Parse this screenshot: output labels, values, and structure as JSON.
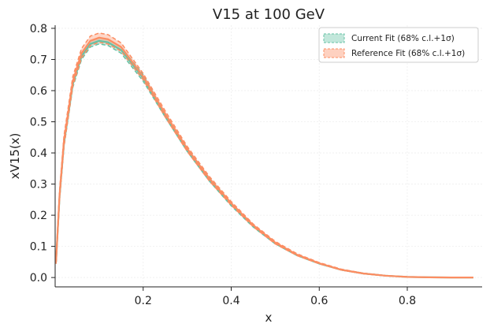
{
  "chart_data": {
    "type": "line",
    "title": "V15 at 100 GeV",
    "xlabel": "x",
    "ylabel": "xV15(x)",
    "xlim": [
      0.0,
      0.97
    ],
    "ylim": [
      -0.03,
      0.81
    ],
    "xticks": [
      0.2,
      0.4,
      0.6,
      0.8
    ],
    "xtick_labels": [
      "0.2",
      "0.4",
      "0.6",
      "0.8"
    ],
    "yticks": [
      0.0,
      0.1,
      0.2,
      0.3,
      0.4,
      0.5,
      0.6,
      0.7,
      0.8
    ],
    "ytick_labels": [
      "0.0",
      "0.1",
      "0.2",
      "0.3",
      "0.4",
      "0.5",
      "0.6",
      "0.7",
      "0.8"
    ],
    "grid": true,
    "legend_position": "top-right",
    "x": [
      0.002,
      0.01,
      0.02,
      0.04,
      0.06,
      0.08,
      0.1,
      0.12,
      0.15,
      0.2,
      0.25,
      0.3,
      0.35,
      0.4,
      0.45,
      0.5,
      0.55,
      0.6,
      0.65,
      0.7,
      0.75,
      0.8,
      0.85,
      0.9,
      0.95
    ],
    "series": [
      {
        "name": "Current Fit (68% c.l.+1σ)",
        "color": "#66c2a5",
        "center": [
          0.05,
          0.26,
          0.43,
          0.62,
          0.71,
          0.75,
          0.76,
          0.755,
          0.73,
          0.64,
          0.52,
          0.41,
          0.315,
          0.235,
          0.165,
          0.11,
          0.072,
          0.045,
          0.025,
          0.013,
          0.006,
          0.002,
          0.0005,
          0.0001,
          0.0
        ],
        "lower": [
          0.045,
          0.25,
          0.42,
          0.61,
          0.7,
          0.74,
          0.75,
          0.745,
          0.72,
          0.63,
          0.515,
          0.405,
          0.31,
          0.23,
          0.162,
          0.108,
          0.07,
          0.044,
          0.024,
          0.012,
          0.0055,
          0.0018,
          0.0004,
          0.0001,
          0.0
        ],
        "upper": [
          0.055,
          0.27,
          0.44,
          0.63,
          0.72,
          0.76,
          0.77,
          0.765,
          0.74,
          0.65,
          0.525,
          0.415,
          0.32,
          0.24,
          0.168,
          0.112,
          0.074,
          0.046,
          0.026,
          0.014,
          0.0065,
          0.0022,
          0.0006,
          0.0001,
          0.0
        ]
      },
      {
        "name": "Reference Fit (68% c.l.+1σ)",
        "color": "#fc8d62",
        "center": [
          0.05,
          0.265,
          0.44,
          0.63,
          0.72,
          0.76,
          0.77,
          0.765,
          0.74,
          0.645,
          0.525,
          0.413,
          0.318,
          0.238,
          0.168,
          0.112,
          0.073,
          0.046,
          0.025,
          0.013,
          0.006,
          0.002,
          0.0005,
          0.0001,
          0.0
        ],
        "lower": [
          0.044,
          0.25,
          0.42,
          0.615,
          0.705,
          0.745,
          0.755,
          0.75,
          0.727,
          0.635,
          0.515,
          0.405,
          0.31,
          0.232,
          0.163,
          0.108,
          0.07,
          0.044,
          0.024,
          0.012,
          0.0055,
          0.0018,
          0.0004,
          0.0001,
          0.0
        ],
        "upper": [
          0.057,
          0.28,
          0.455,
          0.645,
          0.735,
          0.775,
          0.785,
          0.78,
          0.753,
          0.655,
          0.535,
          0.421,
          0.325,
          0.244,
          0.172,
          0.116,
          0.076,
          0.048,
          0.027,
          0.014,
          0.0065,
          0.0022,
          0.0006,
          0.0001,
          0.0
        ]
      }
    ]
  }
}
